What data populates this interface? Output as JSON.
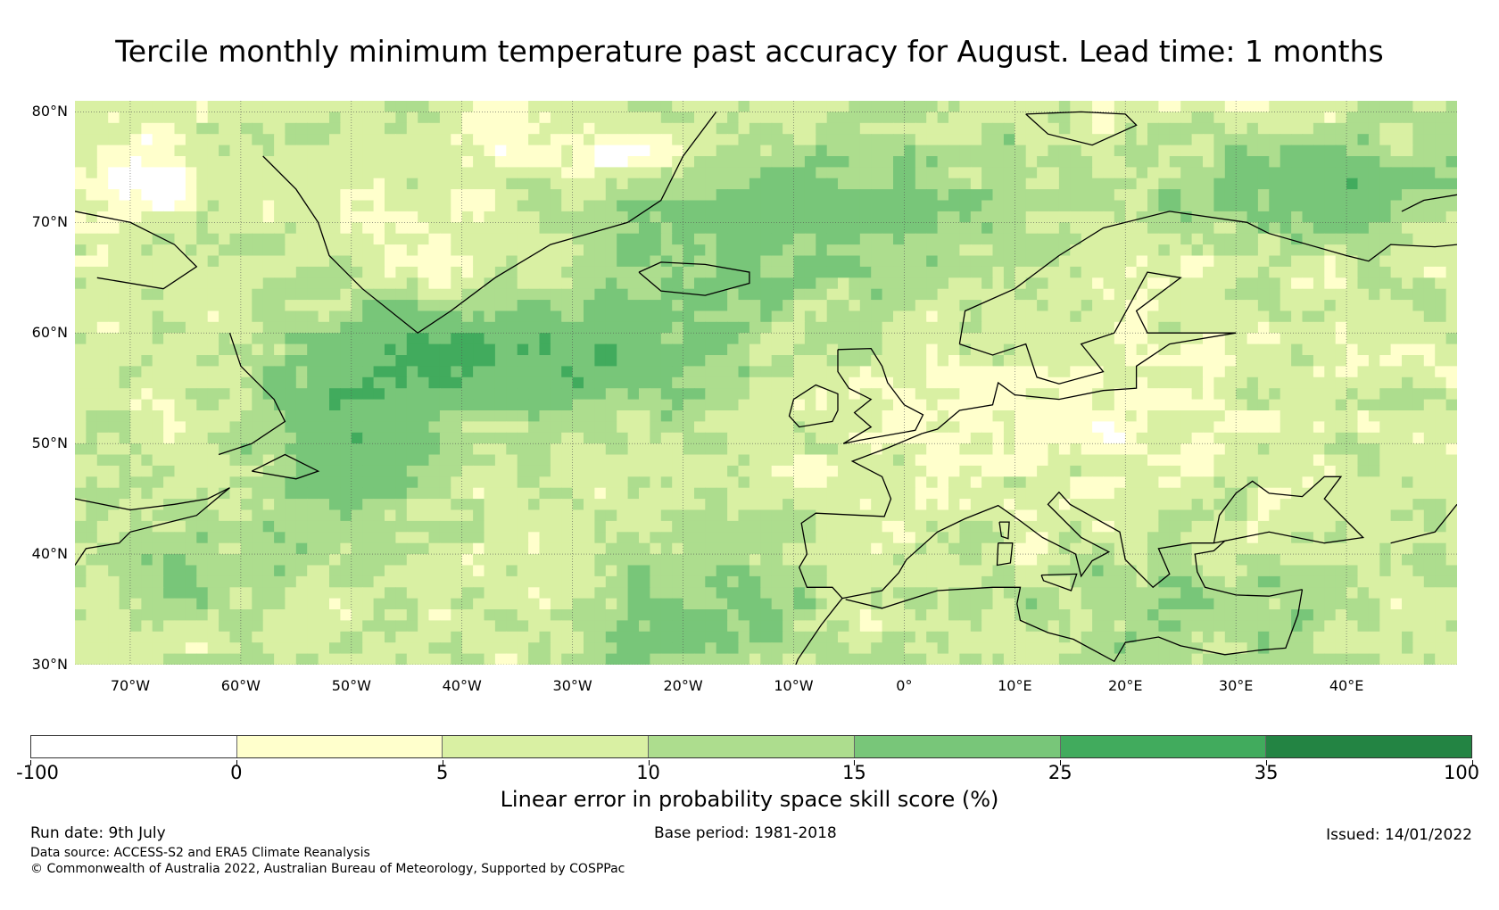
{
  "title": "Tercile monthly minimum temperature past accuracy for August. Lead time: 1 months",
  "map": {
    "lat_labels": [
      "80°N",
      "70°N",
      "60°N",
      "50°N",
      "40°N",
      "30°N"
    ],
    "lon_labels": [
      "70°W",
      "60°W",
      "50°W",
      "40°W",
      "30°W",
      "20°W",
      "10°W",
      "0°",
      "10°E",
      "20°E",
      "30°E",
      "40°E"
    ],
    "lat_range": [
      30,
      81
    ],
    "lon_range": [
      -75,
      50
    ]
  },
  "colorbar": {
    "ticks": [
      "-100",
      "0",
      "5",
      "10",
      "15",
      "25",
      "35",
      "100"
    ],
    "colors": [
      "#ffffff",
      "#ffffcc",
      "#d9f0a3",
      "#addd8e",
      "#78c679",
      "#41ab5d",
      "#238443"
    ],
    "label": "Linear error in probability space skill score (%)"
  },
  "footer": {
    "run_date": "Run date: 9th July",
    "base_period": "Base period: 1981-2018",
    "issued": "Issued: 14/01/2022",
    "data_source": "Data source: ACCESS-S2 and ERA5 Climate Reanalysis",
    "copyright": "© Commonwealth of Australia 2022, Australian Bureau of Meteorology, Supported by COSPPac"
  }
}
